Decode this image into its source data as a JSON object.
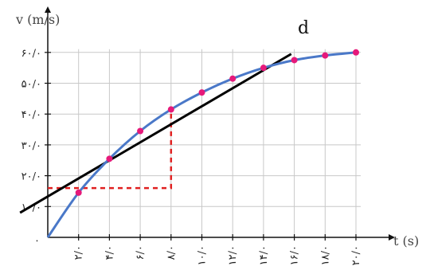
{
  "chart_data": {
    "type": "line",
    "xlabel": "t (s)",
    "ylabel": "v (m/s)",
    "xlim": [
      0,
      20
    ],
    "ylim": [
      0,
      60
    ],
    "grid": true,
    "origin_label": "۰",
    "x_ticks": [
      {
        "value": 2,
        "label": "۲/۰"
      },
      {
        "value": 4,
        "label": "۴/۰"
      },
      {
        "value": 6,
        "label": "۶/۰"
      },
      {
        "value": 8,
        "label": "۸/۰"
      },
      {
        "value": 10,
        "label": "۱۰/۰"
      },
      {
        "value": 12,
        "label": "۱۲/۰"
      },
      {
        "value": 14,
        "label": "۱۴/۰"
      },
      {
        "value": 16,
        "label": "۱۶/۰"
      },
      {
        "value": 18,
        "label": "۱۸/۰"
      },
      {
        "value": 20,
        "label": "۲۰/۰"
      }
    ],
    "y_ticks": [
      {
        "value": 10,
        "label": "۱۰/۰"
      },
      {
        "value": 20,
        "label": "۲۰/۰"
      },
      {
        "value": 30,
        "label": "۳۰/۰"
      },
      {
        "value": 40,
        "label": "۴۰/۰"
      },
      {
        "value": 50,
        "label": "۵۰/۰"
      },
      {
        "value": 60,
        "label": "۶۰/۰"
      }
    ],
    "series": [
      {
        "color": "#4a78c8",
        "marker_color": "#e6197a",
        "x": [
          0,
          2,
          4,
          6,
          8,
          10,
          12,
          14,
          16,
          18,
          20
        ],
        "y": [
          0,
          14.5,
          25.5,
          34.5,
          41.5,
          47,
          51.5,
          55,
          57.5,
          59,
          60
        ]
      }
    ],
    "tangent": {
      "label": "d",
      "color": "#000000",
      "points": [
        [
          -1.8,
          8
        ],
        [
          15.8,
          59.5
        ]
      ]
    },
    "construction": {
      "color": "#e02020",
      "points": [
        [
          0,
          16
        ],
        [
          8,
          16
        ],
        [
          8,
          41.5
        ]
      ]
    }
  }
}
